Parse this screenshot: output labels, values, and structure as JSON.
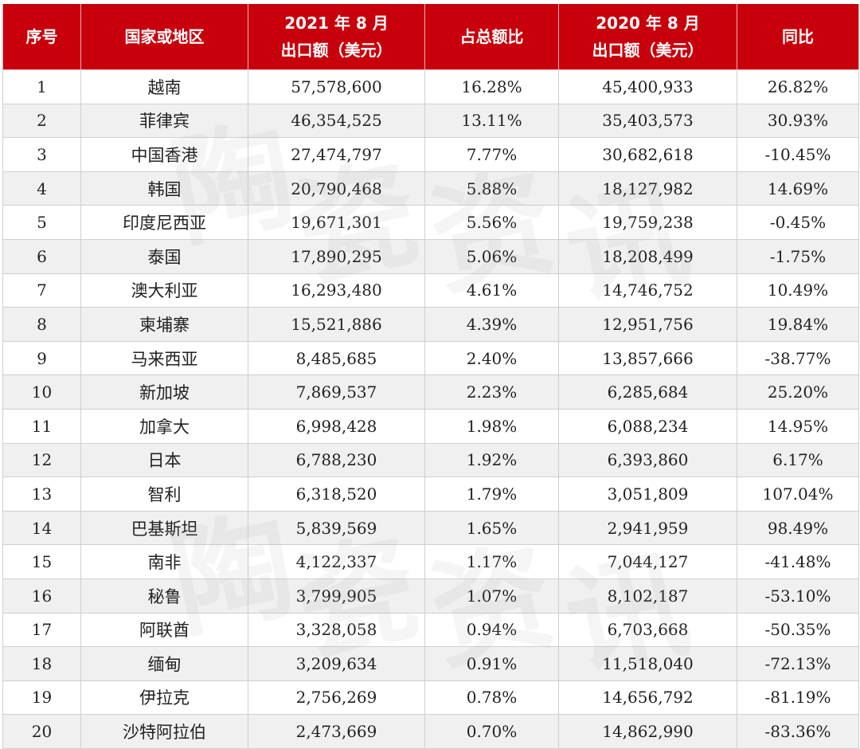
{
  "header": {
    "rank": "序号",
    "country": "国家或地区",
    "export2021_line1": "2021 年 8 月",
    "export2021_line2": "出口额（美元）",
    "share": "占总额比",
    "export2020_line1": "2020 年 8 月",
    "export2020_line2": "出口额（美元）",
    "yoy": "同比"
  },
  "rows": [
    {
      "rank": "1",
      "country": "越南",
      "export2021": "57,578,600",
      "share": "16.28%",
      "export2020": "45,400,933",
      "yoy": "26.82%"
    },
    {
      "rank": "2",
      "country": "菲律宾",
      "export2021": "46,354,525",
      "share": "13.11%",
      "export2020": "35,403,573",
      "yoy": "30.93%"
    },
    {
      "rank": "3",
      "country": "中国香港",
      "export2021": "27,474,797",
      "share": "7.77%",
      "export2020": "30,682,618",
      "yoy": "-10.45%"
    },
    {
      "rank": "4",
      "country": "韩国",
      "export2021": "20,790,468",
      "share": "5.88%",
      "export2020": "18,127,982",
      "yoy": "14.69%"
    },
    {
      "rank": "5",
      "country": "印度尼西亚",
      "export2021": "19,671,301",
      "share": "5.56%",
      "export2020": "19,759,238",
      "yoy": "-0.45%"
    },
    {
      "rank": "6",
      "country": "泰国",
      "export2021": "17,890,295",
      "share": "5.06%",
      "export2020": "18,208,499",
      "yoy": "-1.75%"
    },
    {
      "rank": "7",
      "country": "澳大利亚",
      "export2021": "16,293,480",
      "share": "4.61%",
      "export2020": "14,746,752",
      "yoy": "10.49%"
    },
    {
      "rank": "8",
      "country": "柬埔寨",
      "export2021": "15,521,886",
      "share": "4.39%",
      "export2020": "12,951,756",
      "yoy": "19.84%"
    },
    {
      "rank": "9",
      "country": "马来西亚",
      "export2021": "8,485,685",
      "share": "2.40%",
      "export2020": "13,857,666",
      "yoy": "-38.77%"
    },
    {
      "rank": "10",
      "country": "新加坡",
      "export2021": "7,869,537",
      "share": "2.23%",
      "export2020": "6,285,684",
      "yoy": "25.20%"
    },
    {
      "rank": "11",
      "country": "加拿大",
      "export2021": "6,998,428",
      "share": "1.98%",
      "export2020": "6,088,234",
      "yoy": "14.95%"
    },
    {
      "rank": "12",
      "country": "日本",
      "export2021": "6,788,230",
      "share": "1.92%",
      "export2020": "6,393,860",
      "yoy": "6.17%"
    },
    {
      "rank": "13",
      "country": "智利",
      "export2021": "6,318,520",
      "share": "1.79%",
      "export2020": "3,051,809",
      "yoy": "107.04%"
    },
    {
      "rank": "14",
      "country": "巴基斯坦",
      "export2021": "5,839,569",
      "share": "1.65%",
      "export2020": "2,941,959",
      "yoy": "98.49%"
    },
    {
      "rank": "15",
      "country": "南非",
      "export2021": "4,122,337",
      "share": "1.17%",
      "export2020": "7,044,127",
      "yoy": "-41.48%"
    },
    {
      "rank": "16",
      "country": "秘鲁",
      "export2021": "3,799,905",
      "share": "1.07%",
      "export2020": "8,102,187",
      "yoy": "-53.10%"
    },
    {
      "rank": "17",
      "country": "阿联酋",
      "export2021": "3,328,058",
      "share": "0.94%",
      "export2020": "6,703,668",
      "yoy": "-50.35%"
    },
    {
      "rank": "18",
      "country": "缅甸",
      "export2021": "3,209,634",
      "share": "0.91%",
      "export2020": "11,518,040",
      "yoy": "-72.13%"
    },
    {
      "rank": "19",
      "country": "伊拉克",
      "export2021": "2,756,269",
      "share": "0.78%",
      "export2020": "14,656,792",
      "yoy": "-81.19%"
    },
    {
      "rank": "20",
      "country": "沙特阿拉伯",
      "export2021": "2,473,669",
      "share": "0.70%",
      "export2020": "14,862,990",
      "yoy": "-83.36%"
    }
  ],
  "watermark": {
    "text": [
      "陶",
      "瓷",
      "资",
      "讯",
      "陶",
      "瓷",
      "资",
      "讯"
    ]
  },
  "colors": {
    "header_bg": "#c8000b",
    "header_text": "#ffffff",
    "row_alt_bg": "#f0f0f0"
  }
}
